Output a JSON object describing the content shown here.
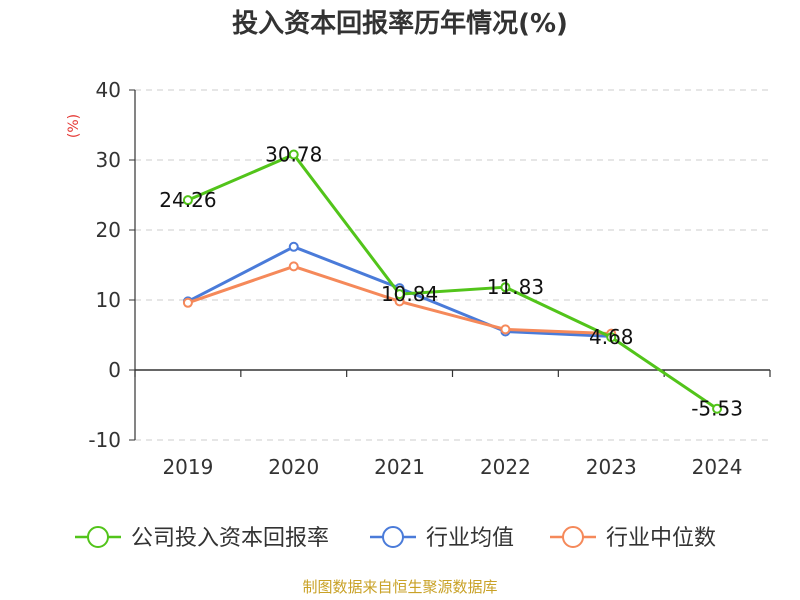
{
  "chart_data": {
    "type": "line",
    "title": "投入资本回报率历年情况(%)",
    "ylabel": "(%)",
    "xlabel": "",
    "categories": [
      "2019",
      "2020",
      "2021",
      "2022",
      "2023",
      "2024"
    ],
    "ylim": [
      -10,
      40
    ],
    "yticks": [
      "-10",
      "0",
      "10",
      "20",
      "30",
      "40"
    ],
    "grid": true,
    "legend_position": "bottom",
    "series": [
      {
        "name": "公司投入资本回报率",
        "color": "#52c41a",
        "values": [
          24.26,
          30.78,
          10.84,
          11.83,
          4.68,
          -5.53
        ],
        "labels": [
          "24.26",
          "30.78",
          "10.84",
          "11.83",
          "4.68",
          "-5.53"
        ]
      },
      {
        "name": "行业均值",
        "color": "#4a7bd9",
        "values": [
          9.8,
          17.6,
          11.7,
          5.5,
          4.8,
          null
        ]
      },
      {
        "name": "行业中位数",
        "color": "#f5895a",
        "values": [
          9.6,
          14.8,
          9.8,
          5.8,
          5.2,
          null
        ]
      }
    ]
  },
  "source": "制图数据来自恒生聚源数据库"
}
